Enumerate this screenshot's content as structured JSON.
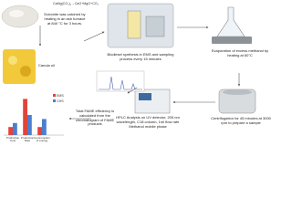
{
  "formula": "CaMg(CO₃)₂→CaO+MgO+CO₂",
  "steps": {
    "calcination": "Dolomite was calcined by heating in an ash furnace at 840 °C for 3 hours.",
    "oil": "Canola oil",
    "synthesis": "Biodiesel synthesis in EMS and sampling process every 15 minutes",
    "evaporation": "Evaporation of excess methanol by heating at 60°C",
    "centrifugation": "Centrifugation for 45 minutes at 3000 rpm to prepare a sample",
    "hplc": "HPLC Analysis on UV detector, 205 nm wavelength, C18 column, 1ml flow rate Methanol mobile phase",
    "fame": "Total FAME efficiency is calculated from the chromatogram of FAME products"
  },
  "bar_chart": {
    "categories": [
      "Production Cost",
      "Production Rate",
      "Consumption of energy"
    ],
    "series": [
      {
        "name": "EMS",
        "color": "#e0443a",
        "values": [
          2,
          9,
          2
        ]
      },
      {
        "name": "CHS",
        "color": "#4a7fd0",
        "values": [
          3,
          5,
          4
        ]
      }
    ],
    "ylim": [
      0,
      10
    ]
  }
}
